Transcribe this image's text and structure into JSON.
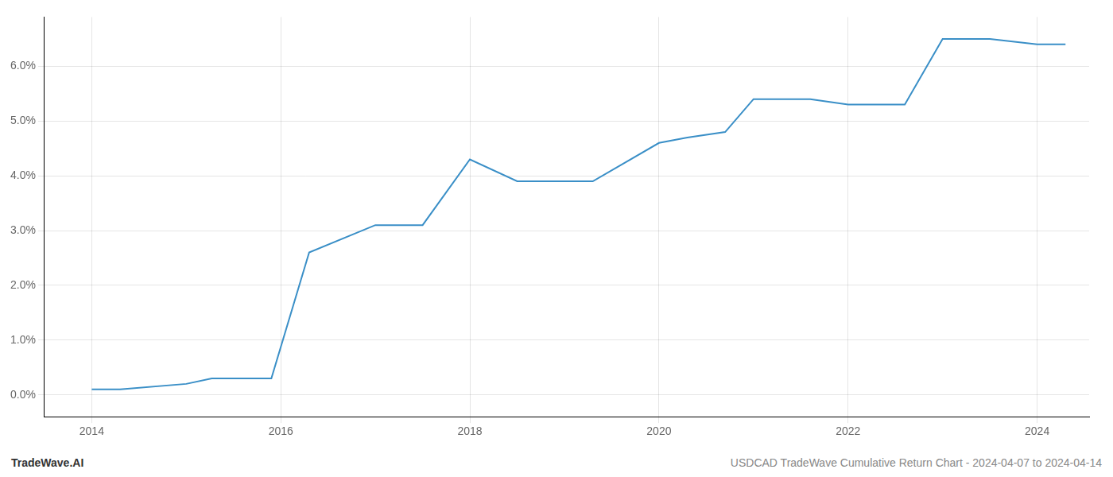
{
  "chart_data": {
    "type": "line",
    "annotations": [
      "TradeWave.AI",
      "USDCAD TradeWave Cumulative Return Chart - 2024-04-07 to 2024-04-14"
    ],
    "x": [
      2014.0,
      2014.3,
      2015.0,
      2015.27,
      2015.9,
      2016.3,
      2017.0,
      2017.5,
      2018.0,
      2018.5,
      2019.0,
      2019.3,
      2019.6,
      2020.0,
      2020.3,
      2020.7,
      2021.0,
      2021.25,
      2021.6,
      2022.0,
      2022.3,
      2022.6,
      2023.0,
      2023.5,
      2024.0,
      2024.3
    ],
    "values": [
      0.001,
      0.001,
      0.002,
      0.003,
      0.003,
      0.026,
      0.031,
      0.031,
      0.043,
      0.039,
      0.039,
      0.039,
      0.042,
      0.046,
      0.047,
      0.048,
      0.054,
      0.054,
      0.054,
      0.053,
      0.053,
      0.053,
      0.065,
      0.065,
      0.064,
      0.064
    ],
    "color": "#3a8fc7",
    "xlim": [
      2013.5,
      2024.55
    ],
    "ylim": [
      -0.004,
      0.069
    ],
    "xticks": [
      2014,
      2016,
      2018,
      2020,
      2022,
      2024
    ],
    "yticks": [
      {
        "value": 0.0,
        "label": "0.0%"
      },
      {
        "value": 0.01,
        "label": "1.0%"
      },
      {
        "value": 0.02,
        "label": "2.0%"
      },
      {
        "value": 0.03,
        "label": "3.0%"
      },
      {
        "value": 0.04,
        "label": "4.0%"
      },
      {
        "value": 0.05,
        "label": "5.0%"
      },
      {
        "value": 0.06,
        "label": "6.0%"
      }
    ],
    "grid": true
  }
}
